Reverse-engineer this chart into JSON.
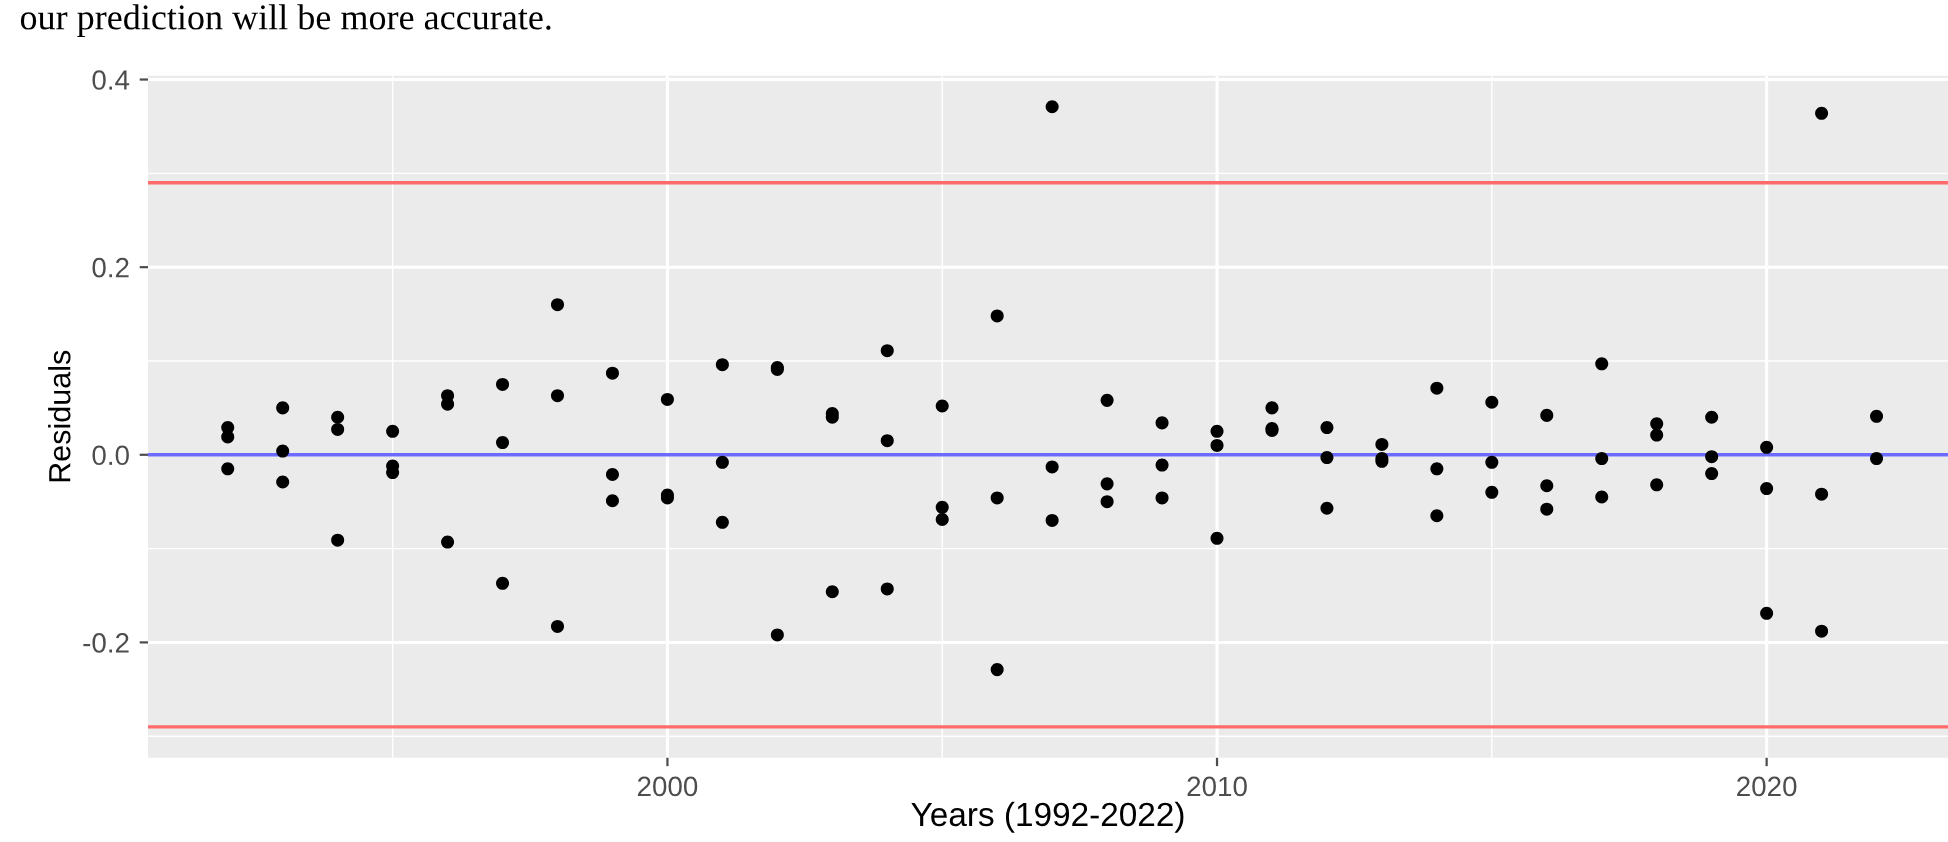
{
  "chart_data": {
    "type": "scatter",
    "xlabel": "Years (1992-2022)",
    "ylabel": "Residuals",
    "annotations": [
      "our prediction will be more accurate."
    ],
    "series": [
      {
        "color": "#000000",
        "x": [
          1992,
          1992,
          1992,
          1993,
          1993,
          1993,
          1994,
          1994,
          1994,
          1995,
          1995,
          1995,
          1996,
          1996,
          1996,
          1997,
          1997,
          1997,
          1998,
          1998,
          1998,
          1999,
          1999,
          1999,
          2000,
          2000,
          2000,
          2001,
          2001,
          2001,
          2002,
          2002,
          2002,
          2003,
          2003,
          2003,
          2004,
          2004,
          2004,
          2005,
          2005,
          2005,
          2006,
          2006,
          2006,
          2007,
          2007,
          2007,
          2008,
          2008,
          2008,
          2009,
          2009,
          2009,
          2010,
          2010,
          2010,
          2011,
          2011,
          2011,
          2012,
          2012,
          2012,
          2013,
          2013,
          2013,
          2014,
          2014,
          2014,
          2015,
          2015,
          2015,
          2016,
          2016,
          2016,
          2017,
          2017,
          2017,
          2018,
          2018,
          2018,
          2019,
          2019,
          2019,
          2020,
          2020,
          2020,
          2021,
          2021,
          2021,
          2022,
          2022
        ],
        "values": [
          0.029,
          0.019,
          -0.015,
          0.05,
          0.004,
          -0.029,
          0.04,
          0.027,
          -0.091,
          0.025,
          -0.012,
          -0.019,
          0.063,
          0.054,
          -0.093,
          0.075,
          0.013,
          -0.137,
          0.16,
          0.063,
          -0.183,
          0.087,
          -0.021,
          -0.049,
          0.059,
          -0.043,
          -0.046,
          0.096,
          -0.008,
          -0.072,
          0.093,
          0.091,
          -0.192,
          0.044,
          0.04,
          -0.146,
          0.111,
          0.015,
          -0.143,
          0.052,
          -0.056,
          -0.069,
          0.148,
          -0.046,
          -0.229,
          0.371,
          -0.013,
          -0.07,
          0.058,
          -0.031,
          -0.05,
          0.034,
          -0.011,
          -0.046,
          0.025,
          0.01,
          -0.089,
          0.05,
          0.028,
          0.026,
          0.029,
          -0.003,
          -0.057,
          0.011,
          -0.004,
          -0.007,
          0.071,
          -0.015,
          -0.065,
          0.056,
          -0.008,
          -0.04,
          0.042,
          -0.033,
          -0.058,
          0.097,
          -0.004,
          -0.045,
          0.033,
          0.021,
          -0.032,
          0.04,
          -0.002,
          -0.02,
          0.008,
          -0.036,
          -0.169,
          0.364,
          -0.042,
          -0.188,
          0.041,
          -0.004
        ]
      }
    ],
    "marker": "circle",
    "xlim": [
      1990.55,
      2023.3
    ],
    "xticks": [
      2000,
      2010,
      2020
    ],
    "ylim": [
      -0.323,
      0.404
    ],
    "yticks": [
      {
        "value": -0.2,
        "label": "-0.2"
      },
      {
        "value": 0,
        "label": "0.0"
      },
      {
        "value": 0.2,
        "label": "0.2"
      },
      {
        "value": 0.4,
        "label": "0.4"
      }
    ],
    "grid": true,
    "ref_lines": [
      {
        "axis": "y",
        "value": 0.29,
        "color": "#ff6b6b"
      },
      {
        "axis": "y",
        "value": -0.29,
        "color": "#ff6b6b"
      },
      {
        "axis": "y",
        "value": 0,
        "color": "#6b6bff"
      }
    ]
  }
}
